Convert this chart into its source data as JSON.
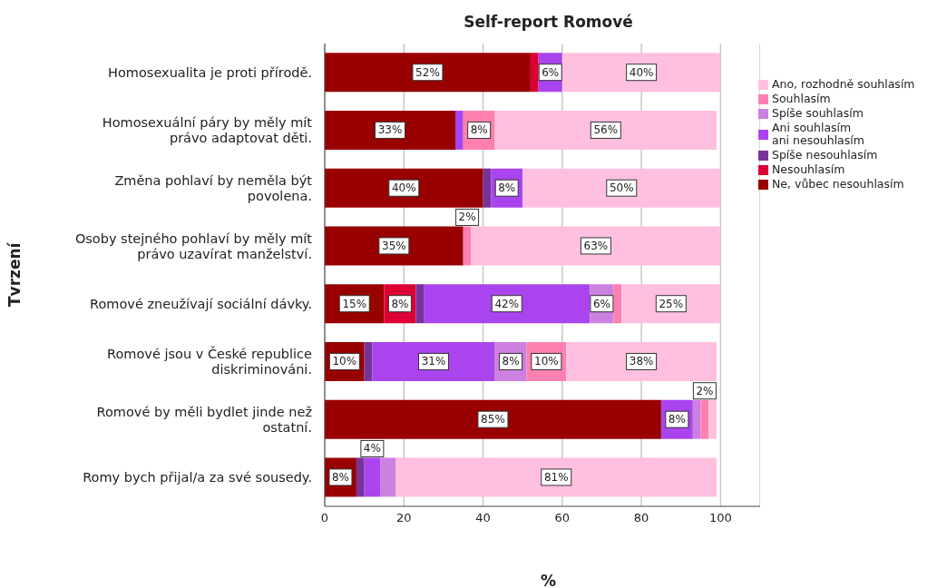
{
  "chart_data": {
    "type": "bar",
    "orientation": "horizontal",
    "stacked": true,
    "title": "Self-report Romové",
    "xlabel": "%",
    "ylabel": "Tvrzení",
    "categories": [
      "Homosexualita je proti přírodě.",
      "Homosexuální páry by měly mít právo adaptovat děti.",
      "Změna pohlaví by neměla být povolena.",
      "Osoby stejného pohlaví by měly mít právo uzavírat manželství.",
      "Romové zneužívají sociální dávky.",
      "Romové jsou v České republice diskriminováni.",
      "Romové by měli bydlet jinde než ostatní.",
      "Romy bych přijal/a za své sousedy."
    ],
    "series": [
      {
        "name": "Ne, vůbec nesouhlasím",
        "color": "#990000",
        "values": [
          52,
          33,
          40,
          35,
          15,
          10,
          85,
          8
        ],
        "value_labels": [
          "52%",
          "33%",
          "40%",
          "35%",
          "15%",
          "10%",
          "85%",
          "8%"
        ]
      },
      {
        "name": "Nesouhlasím",
        "color": "#dd0033",
        "values": [
          2,
          0,
          0,
          0,
          8,
          0,
          0,
          0
        ],
        "value_labels": [
          null,
          null,
          null,
          null,
          "8%",
          null,
          null,
          null
        ]
      },
      {
        "name": "Spíše nesouhlasím",
        "color": "#773399",
        "values": [
          0,
          0,
          2,
          0,
          2,
          2,
          0,
          2
        ],
        "value_labels": [
          null,
          null,
          null,
          null,
          null,
          null,
          null,
          null
        ]
      },
      {
        "name": "Ani souhlasím\nani nesouhlasím",
        "color": "#aa44ee",
        "values": [
          6,
          2,
          8,
          0,
          42,
          31,
          8,
          4
        ],
        "value_labels": [
          "6%",
          null,
          "8%",
          null,
          "42%",
          "31%",
          "8%",
          "4%"
        ]
      },
      {
        "name": "Spíše souhlasím",
        "color": "#cc80e0",
        "values": [
          0,
          0,
          0,
          0,
          6,
          8,
          2,
          4
        ],
        "value_labels": [
          null,
          null,
          null,
          null,
          "6%",
          "8%",
          null,
          null
        ]
      },
      {
        "name": "Souhlasím",
        "color": "#ff80b0",
        "values": [
          0,
          8,
          0,
          2,
          2,
          10,
          2,
          0
        ],
        "value_labels": [
          null,
          "8%",
          null,
          "2%",
          null,
          "10%",
          "2%",
          null
        ]
      },
      {
        "name": "Ano, rozhodně souhlasím",
        "color": "#ffc0e0",
        "values": [
          40,
          56,
          50,
          63,
          25,
          38,
          2,
          81
        ],
        "value_labels": [
          "40%",
          "56%",
          "50%",
          "63%",
          "25%",
          "38%",
          null,
          "81%"
        ]
      }
    ],
    "xlim": [
      0,
      110
    ],
    "xticks": [
      0,
      20,
      40,
      60,
      80,
      100
    ],
    "grid": "x",
    "legend": "right"
  }
}
